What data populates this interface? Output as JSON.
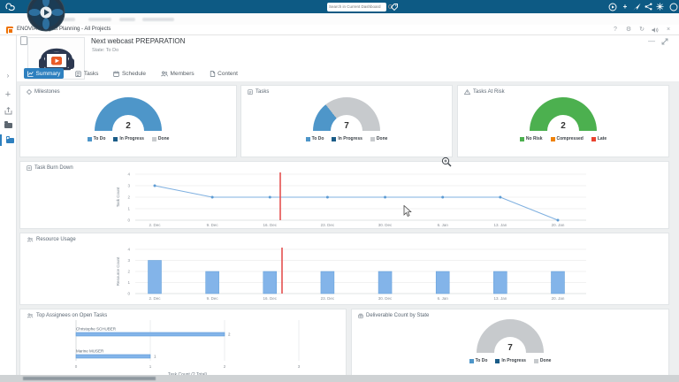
{
  "topbar": {
    "brand": "3DEXPERIENCE",
    "separator": "|",
    "app": "3DDashboard",
    "dashboard_name": "Swimmers home page",
    "search_placeholder": "Search in Current Dashboard"
  },
  "apptab": {
    "label": "ENOVIA - Project Planning - All Projects"
  },
  "window_controls": {
    "help": "?",
    "settings": "⚙",
    "refresh": "↻",
    "close": "×"
  },
  "header_controls": {
    "minimize": "—"
  },
  "project": {
    "title": "Next webcast PREPARATION",
    "state": "State: To Do"
  },
  "tabs": [
    {
      "label": "Summary",
      "active": true
    },
    {
      "label": "Tasks",
      "active": false
    },
    {
      "label": "Schedule",
      "active": false
    },
    {
      "label": "Members",
      "active": false
    },
    {
      "label": "Content",
      "active": false
    }
  ],
  "colors": {
    "accent": "#2e80bf",
    "todo": "#4e96c9",
    "in_progress": "#1a5c87",
    "done": "#c7cacd",
    "no_risk": "#4cb04f",
    "compressed": "#ef8208",
    "late": "#e9422e",
    "bar_fill": "#83b4e9",
    "bar_edge": "#5c9bd8",
    "line": "#7fb0e0",
    "marker": "#5d9bd3",
    "today_line": "#e4504f"
  },
  "gauges": [
    {
      "title": "Milestones",
      "value": "2",
      "segments": [
        {
          "label": "To Do",
          "value": 2,
          "color_key": "todo"
        }
      ],
      "legend": [
        {
          "label": "To Do",
          "color_key": "todo"
        },
        {
          "label": "In Progress",
          "color_key": "in_progress"
        },
        {
          "label": "Done",
          "color_key": "done"
        }
      ]
    },
    {
      "title": "Tasks",
      "value": "7",
      "segments": [
        {
          "label": "To Do",
          "value": 2,
          "color_key": "todo"
        },
        {
          "label": "Done",
          "value": 5,
          "color_key": "done"
        }
      ],
      "legend": [
        {
          "label": "To Do",
          "color_key": "todo"
        },
        {
          "label": "In Progress",
          "color_key": "in_progress"
        },
        {
          "label": "Done",
          "color_key": "done"
        }
      ]
    },
    {
      "title": "Tasks At Risk",
      "value": "2",
      "segments": [
        {
          "label": "No Risk",
          "value": 2,
          "color_key": "no_risk"
        }
      ],
      "legend": [
        {
          "label": "No Risk",
          "color_key": "no_risk"
        },
        {
          "label": "Compressed",
          "color_key": "compressed"
        },
        {
          "label": "Late",
          "color_key": "late"
        }
      ]
    },
    {
      "title": "Deliverable Count by State",
      "value": "7",
      "segments": [
        {
          "label": "Done",
          "value": 7,
          "color_key": "done"
        }
      ],
      "legend": [
        {
          "label": "To Do",
          "color_key": "todo"
        },
        {
          "label": "In Progress",
          "color_key": "in_progress"
        },
        {
          "label": "Done",
          "color_key": "done"
        }
      ]
    }
  ],
  "chart_data": [
    {
      "id": "burndown",
      "type": "line",
      "title": "Task Burn Down",
      "ylabel": "Task Count",
      "ylim": [
        0,
        4
      ],
      "yticks": [
        0,
        1,
        2,
        3,
        4
      ],
      "categories": [
        "2. Dec",
        "9. Dec",
        "16. Dec",
        "23. Dec",
        "30. Dec",
        "6. Jan",
        "13. Jan",
        "20. Jan"
      ],
      "values": [
        3,
        2,
        2,
        2,
        2,
        2,
        2,
        0
      ],
      "today_marker_between": [
        "16. Dec",
        "23. Dec"
      ]
    },
    {
      "id": "resource",
      "type": "bar",
      "title": "Resource Usage",
      "ylabel": "Resource Count",
      "ylim": [
        0,
        4
      ],
      "yticks": [
        0,
        1,
        2,
        3,
        4
      ],
      "categories": [
        "2. Dec",
        "9. Dec",
        "16. Dec",
        "23. Dec",
        "30. Dec",
        "6. Jan",
        "13. Jan",
        "20. Jan"
      ],
      "values": [
        3,
        2,
        2,
        2,
        2,
        2,
        2,
        2
      ],
      "today_marker_between": [
        "16. Dec",
        "23. Dec"
      ]
    },
    {
      "id": "assignees",
      "type": "hbar",
      "title": "Top Assignees on Open Tasks",
      "xlabel": "Task Count (2 Total)",
      "xlim": [
        0,
        3
      ],
      "xticks": [
        0,
        1,
        2,
        3
      ],
      "categories": [
        "Christophe SCHUBER",
        "Marine MUSER"
      ],
      "values": [
        2,
        1
      ]
    }
  ]
}
